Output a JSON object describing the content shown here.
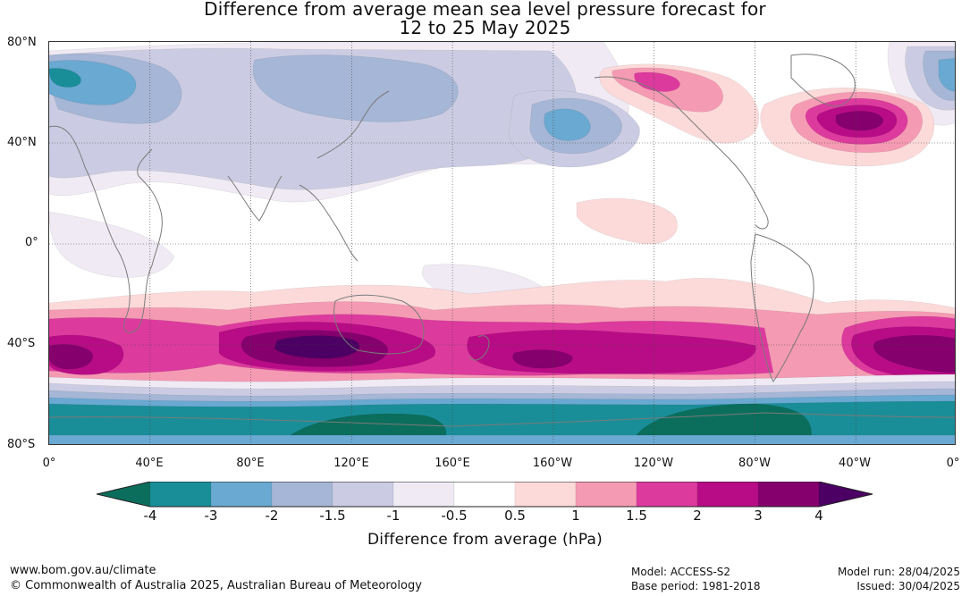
{
  "title": {
    "line1": "Difference from average mean sea level pressure forecast for",
    "line2": "12 to 25 May 2025"
  },
  "map": {
    "lat_labels": [
      "80°N",
      "40°N",
      "0°",
      "40°S",
      "80°S"
    ],
    "lon_labels": [
      "0°",
      "40°E",
      "80°E",
      "120°E",
      "160°E",
      "160°W",
      "120°W",
      "80°W",
      "40°W",
      "0°"
    ],
    "colors": {
      "n4": "#0b6e5c",
      "n3": "#1a8e98",
      "n2": "#6aa9d1",
      "n15": "#a5b6d6",
      "n1": "#cbcce3",
      "n05": "#efeaf3",
      "zero": "#ffffff",
      "p05": "#fcdada",
      "p1": "#f59ab3",
      "p15": "#dd3a9e",
      "p2": "#b80c86",
      "p3": "#85006d",
      "p4": "#4c0063",
      "land": "#7a7a7a"
    }
  },
  "colorbar": {
    "title": "Difference from average (hPa)",
    "ticks": [
      "-4",
      "-3",
      "-2",
      "-1.5",
      "-1",
      "-0.5",
      "0.5",
      "1",
      "1.5",
      "2",
      "3",
      "4"
    ]
  },
  "footer": {
    "website": "www.bom.gov.au/climate",
    "copyright": "© Commonwealth of Australia 2025, Australian Bureau of Meteorology",
    "model": "Model: ACCESS-S2",
    "base_period": "Base period: 1981-2018",
    "model_run": "Model run: 28/04/2025",
    "issued": "Issued: 30/04/2025"
  }
}
